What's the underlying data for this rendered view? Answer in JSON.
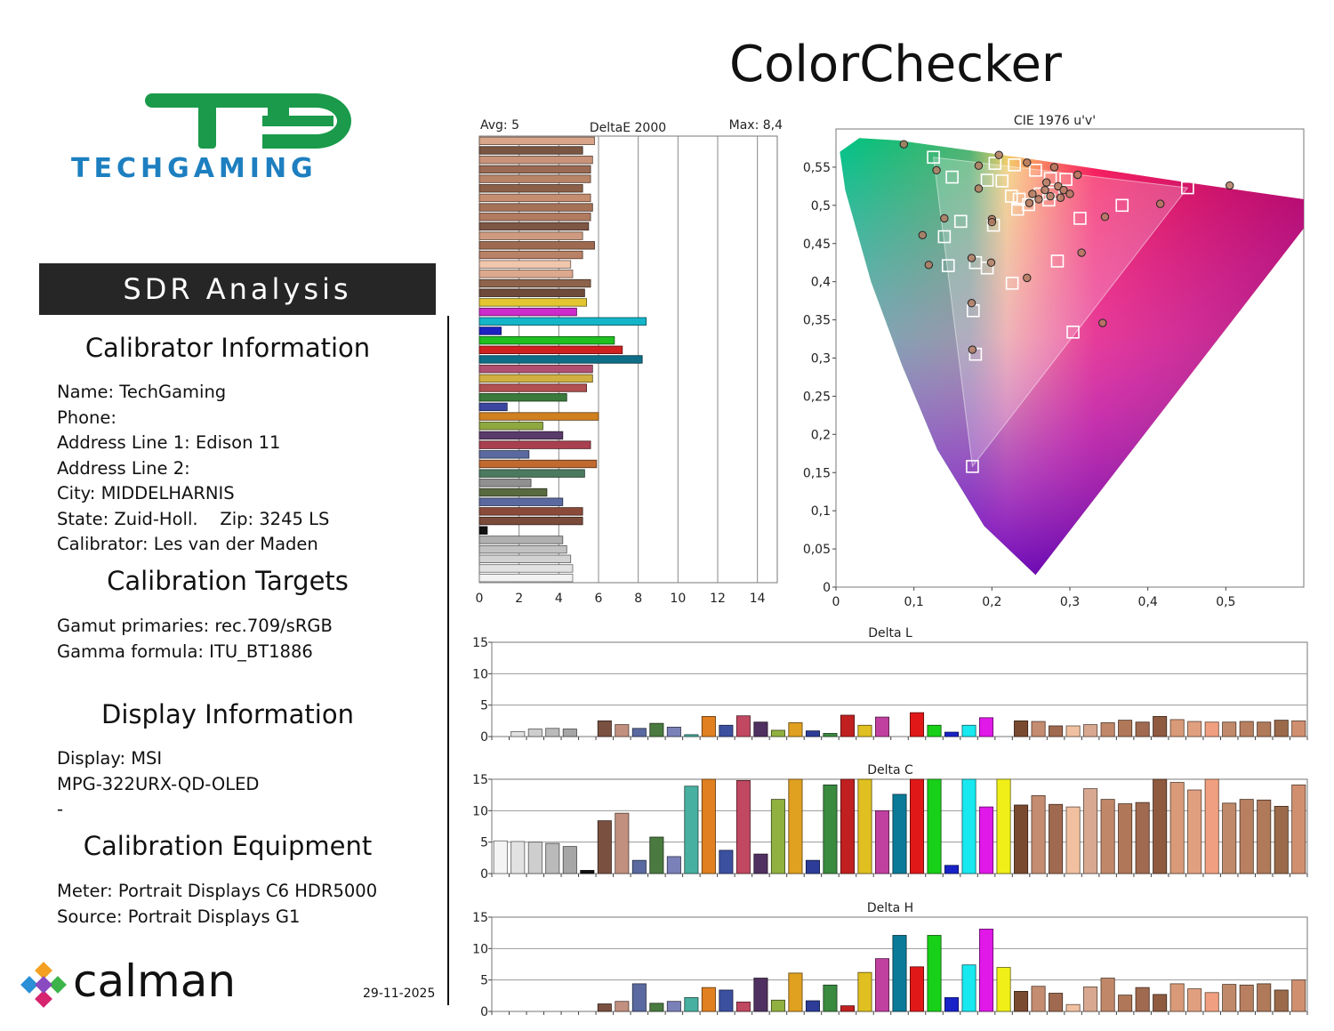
{
  "page": {
    "title": "ColorChecker",
    "logo_text": "TECHGAMING",
    "logo_mark": "TG",
    "banner": "SDR Analysis",
    "date": "29-11-2025",
    "calman_logo": "calman"
  },
  "sections": {
    "calibrator_info": {
      "heading": "Calibrator Information",
      "lines": [
        "Name: TechGaming",
        "Phone:",
        "Address Line 1: Edison 11",
        "Address Line 2:",
        "City: MIDDELHARNIS",
        "State: Zuid-Holl.    Zip: 3245 LS",
        "Calibrator: Les van der Maden"
      ]
    },
    "targets": {
      "heading": "Calibration Targets",
      "lines": [
        "Gamut primaries: rec.709/sRGB",
        "Gamma formula: ITU_BT1886"
      ]
    },
    "display": {
      "heading": "Display Information",
      "lines": [
        "Display: MSI",
        "MPG-322URX-QD-OLED",
        "-"
      ]
    },
    "equipment": {
      "heading": "Calibration Equipment",
      "lines": [
        "Meter: Portrait Displays C6 HDR5000",
        "Source: Portrait Displays G1"
      ]
    }
  },
  "chart_data": [
    {
      "type": "bar",
      "orientation": "horizontal",
      "title": "DeltaE 2000",
      "avg_label": "Avg: 5",
      "max_label": "Max: 8,4",
      "xlim": [
        0,
        15
      ],
      "xticks": [
        "0",
        "2",
        "4",
        "6",
        "8",
        "10",
        "12",
        "14"
      ],
      "values": [
        5.8,
        5.2,
        5.7,
        5.6,
        5.6,
        5.2,
        5.6,
        5.7,
        5.6,
        5.5,
        5.2,
        5.8,
        5.2,
        4.6,
        4.7,
        5.6,
        5.3,
        5.4,
        4.9,
        8.4,
        1.1,
        6.8,
        7.2,
        8.2,
        5.7,
        5.7,
        5.4,
        4.4,
        1.4,
        6.0,
        3.2,
        4.2,
        5.6,
        2.5,
        5.9,
        5.3,
        2.6,
        3.4,
        4.2,
        5.2,
        5.2,
        0.4,
        4.2,
        4.4,
        4.6,
        4.7,
        4.7
      ],
      "colors": [
        "#d8a58a",
        "#7a5542",
        "#c89378",
        "#9a6b54",
        "#b88468",
        "#8c6048",
        "#c58e70",
        "#a57258",
        "#b17b5f",
        "#7e5644",
        "#cf9b80",
        "#9d6a50",
        "#b98165",
        "#f0c6ad",
        "#dca88e",
        "#8e634c",
        "#6e4a3a",
        "#e2c530",
        "#cc2ccc",
        "#14b5c8",
        "#1c22c0",
        "#20c020",
        "#d02020",
        "#0e6e88",
        "#b05070",
        "#d0b040",
        "#b05050",
        "#3a7a3a",
        "#3a46a0",
        "#d08020",
        "#90a840",
        "#5a3a6a",
        "#a84050",
        "#5a6aa0",
        "#c06a30",
        "#4a7a60",
        "#909090",
        "#5a6a40",
        "#5a6aa0",
        "#8a4a3a",
        "#7a4a3a",
        "#111111",
        "#b0b0b0",
        "#c2c2c2",
        "#d2d2d2",
        "#e2e2e2",
        "#f2f2f2"
      ]
    },
    {
      "type": "scatter",
      "title": "CIE 1976 u'v'",
      "xlim": [
        0,
        0.6
      ],
      "ylim": [
        0,
        0.6
      ],
      "xticks": [
        "0",
        "0,1",
        "0,2",
        "0,3",
        "0,4",
        "0,5"
      ],
      "yticks": [
        "0",
        "0,05",
        "0,1",
        "0,15",
        "0,2",
        "0,25",
        "0,3",
        "0,35",
        "0,4",
        "0,45",
        "0,5",
        "0,55"
      ],
      "gamut_triangle": [
        [
          0.451,
          0.523
        ],
        [
          0.125,
          0.563
        ],
        [
          0.175,
          0.158
        ]
      ],
      "targets": [
        [
          0.125,
          0.563
        ],
        [
          0.149,
          0.537
        ],
        [
          0.204,
          0.555
        ],
        [
          0.229,
          0.553
        ],
        [
          0.256,
          0.546
        ],
        [
          0.275,
          0.535
        ],
        [
          0.295,
          0.534
        ],
        [
          0.262,
          0.515
        ],
        [
          0.279,
          0.516
        ],
        [
          0.273,
          0.507
        ],
        [
          0.235,
          0.508
        ],
        [
          0.247,
          0.501
        ],
        [
          0.233,
          0.495
        ],
        [
          0.225,
          0.512
        ],
        [
          0.194,
          0.533
        ],
        [
          0.213,
          0.532
        ],
        [
          0.16,
          0.479
        ],
        [
          0.139,
          0.459
        ],
        [
          0.313,
          0.483
        ],
        [
          0.367,
          0.5
        ],
        [
          0.451,
          0.523
        ],
        [
          0.202,
          0.474
        ],
        [
          0.144,
          0.421
        ],
        [
          0.179,
          0.425
        ],
        [
          0.194,
          0.418
        ],
        [
          0.226,
          0.398
        ],
        [
          0.284,
          0.427
        ],
        [
          0.176,
          0.362
        ],
        [
          0.304,
          0.334
        ],
        [
          0.179,
          0.305
        ],
        [
          0.175,
          0.158
        ]
      ],
      "measured": [
        [
          0.087,
          0.58
        ],
        [
          0.129,
          0.546
        ],
        [
          0.183,
          0.552
        ],
        [
          0.209,
          0.566
        ],
        [
          0.245,
          0.556
        ],
        [
          0.28,
          0.55
        ],
        [
          0.31,
          0.54
        ],
        [
          0.183,
          0.522
        ],
        [
          0.27,
          0.53
        ],
        [
          0.285,
          0.525
        ],
        [
          0.292,
          0.52
        ],
        [
          0.3,
          0.515
        ],
        [
          0.275,
          0.512
        ],
        [
          0.26,
          0.508
        ],
        [
          0.248,
          0.503
        ],
        [
          0.268,
          0.52
        ],
        [
          0.288,
          0.51
        ],
        [
          0.252,
          0.515
        ],
        [
          0.2,
          0.482
        ],
        [
          0.2,
          0.478
        ],
        [
          0.139,
          0.483
        ],
        [
          0.111,
          0.461
        ],
        [
          0.119,
          0.422
        ],
        [
          0.345,
          0.485
        ],
        [
          0.416,
          0.502
        ],
        [
          0.505,
          0.526
        ],
        [
          0.315,
          0.438
        ],
        [
          0.174,
          0.431
        ],
        [
          0.199,
          0.425
        ],
        [
          0.245,
          0.405
        ],
        [
          0.174,
          0.372
        ],
        [
          0.342,
          0.346
        ],
        [
          0.175,
          0.311
        ]
      ]
    },
    {
      "type": "bar",
      "title": "Delta L",
      "ylim": [
        0,
        15
      ],
      "yticks": [
        "0",
        "5",
        "10",
        "15"
      ],
      "values": [
        0.0,
        0.8,
        1.2,
        1.3,
        1.2,
        0.0,
        2.5,
        1.9,
        1.3,
        2.1,
        1.5,
        0.3,
        3.2,
        1.8,
        3.3,
        2.3,
        1.0,
        2.2,
        0.9,
        0.5,
        3.4,
        1.8,
        3.1,
        0.0,
        3.8,
        1.8,
        0.7,
        1.8,
        3.0,
        0.0,
        2.5,
        2.4,
        1.7,
        1.7,
        1.9,
        2.2,
        2.6,
        2.3,
        3.2,
        2.7,
        2.4,
        2.3,
        2.3,
        2.4,
        2.3,
        2.6,
        2.5
      ]
    },
    {
      "type": "bar",
      "title": "Delta C",
      "ylim": [
        0,
        15
      ],
      "yticks": [
        "0",
        "5",
        "10",
        "15"
      ],
      "values": [
        5.2,
        5.1,
        5.0,
        4.8,
        4.3,
        0.5,
        8.4,
        9.6,
        2.1,
        5.8,
        2.7,
        13.9,
        15,
        3.7,
        14.8,
        3.1,
        11.8,
        15,
        2.1,
        14.1,
        15,
        15,
        10.0,
        12.6,
        15,
        15,
        1.3,
        15,
        10.6,
        15,
        10.9,
        12.4,
        11.0,
        10.6,
        13.5,
        11.8,
        11.1,
        11.3,
        15,
        14.5,
        13.3,
        15,
        11.2,
        11.8,
        11.7,
        10.7,
        14.1
      ]
    },
    {
      "type": "bar",
      "title": "Delta H",
      "ylim": [
        0,
        15
      ],
      "yticks": [
        "0",
        "5",
        "10",
        "15"
      ],
      "values": [
        0.0,
        0.0,
        0.0,
        0.0,
        0.0,
        0.0,
        1.2,
        1.6,
        4.4,
        1.3,
        1.6,
        2.2,
        3.8,
        3.4,
        1.5,
        5.3,
        1.8,
        6.1,
        1.7,
        4.2,
        0.9,
        6.2,
        8.4,
        12.1,
        7.1,
        12.1,
        2.2,
        7.4,
        13.1,
        7.0,
        3.2,
        4.0,
        2.9,
        1.1,
        3.9,
        5.3,
        2.6,
        3.8,
        2.7,
        4.4,
        3.6,
        3.0,
        4.3,
        4.2,
        4.4,
        3.4,
        5.0
      ]
    },
    {
      "type": "bar-colors",
      "colors": [
        "#f4f4f4",
        "#e2e2e2",
        "#cecece",
        "#bababa",
        "#a6a6a6",
        "#111111",
        "#7a5040",
        "#c29080",
        "#5a6aa0",
        "#4a7a40",
        "#7a80b8",
        "#48b0a0",
        "#e08020",
        "#3c50a0",
        "#c04860",
        "#503060",
        "#90b040",
        "#e0a020",
        "#2c3c98",
        "#3a8a40",
        "#c02020",
        "#e0c020",
        "#c040a0",
        "#0a7a98",
        "#e01818",
        "#18d018",
        "#1822c8",
        "#18e8f0",
        "#e018e8",
        "#f0f018",
        "#7a4a30",
        "#c48c70",
        "#a06a50",
        "#f0c0a0",
        "#d8a890",
        "#c08868",
        "#b07858",
        "#a06a50",
        "#8e5a40",
        "#d89a78",
        "#e0a080",
        "#f0a080",
        "#c08a6a",
        "#b88060",
        "#b07a5a",
        "#9a6a4a",
        "#d09070"
      ]
    }
  ]
}
